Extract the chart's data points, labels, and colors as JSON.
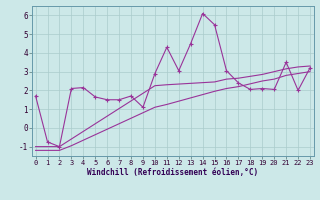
{
  "background_color": "#cce8e8",
  "line_color": "#993399",
  "grid_color": "#aacccc",
  "xlim": [
    -0.3,
    23.3
  ],
  "ylim": [
    -1.5,
    6.5
  ],
  "yticks": [
    -1,
    0,
    1,
    2,
    3,
    4,
    5,
    6
  ],
  "xticks": [
    0,
    1,
    2,
    3,
    4,
    5,
    6,
    7,
    8,
    9,
    10,
    11,
    12,
    13,
    14,
    15,
    16,
    17,
    18,
    19,
    20,
    21,
    22,
    23
  ],
  "xlabel": "Windchill (Refroidissement éolien,°C)",
  "line1_x": [
    0,
    1,
    2,
    3,
    4,
    5,
    6,
    7,
    8,
    9,
    10,
    11,
    12,
    13,
    14,
    15,
    16,
    17,
    18,
    19,
    20,
    21,
    22,
    23
  ],
  "line1_y": [
    1.7,
    -0.75,
    -1.0,
    2.1,
    2.15,
    1.65,
    1.5,
    1.5,
    1.7,
    1.1,
    2.9,
    4.3,
    3.05,
    4.5,
    6.1,
    5.5,
    3.05,
    2.4,
    2.05,
    2.1,
    2.05,
    3.5,
    2.0,
    3.2
  ],
  "line2_x": [
    0,
    1,
    2,
    10,
    11,
    15,
    16,
    17,
    18,
    19,
    20,
    21,
    22,
    23
  ],
  "line2_y": [
    -1.0,
    -1.0,
    -1.0,
    2.25,
    2.3,
    2.45,
    2.6,
    2.65,
    2.75,
    2.85,
    3.0,
    3.15,
    3.25,
    3.3
  ],
  "line3_x": [
    0,
    1,
    2,
    3,
    10,
    11,
    15,
    16,
    17,
    18,
    19,
    20,
    21,
    22,
    23
  ],
  "line3_y": [
    -1.2,
    -1.2,
    -1.2,
    -0.95,
    1.1,
    1.25,
    1.95,
    2.1,
    2.2,
    2.35,
    2.5,
    2.6,
    2.8,
    2.9,
    3.0
  ],
  "tickfont_size": 5,
  "xlabel_size": 5.5
}
